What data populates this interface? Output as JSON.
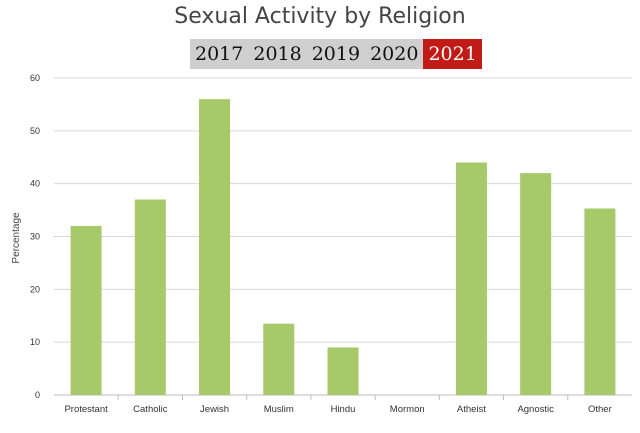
{
  "title": "Sexual Activity by Religion",
  "year_tabs": {
    "years": [
      "2017",
      "2018",
      "2019",
      "2020",
      "2021"
    ],
    "active": "2021"
  },
  "colors": {
    "bar": "#a6c96a",
    "active_tab": "#c11b17",
    "tab_bg": "#cfcfcf",
    "grid": "#d8d8d8"
  },
  "chart_data": {
    "type": "bar",
    "title": "Sexual Activity by Religion",
    "xlabel": "",
    "ylabel": "Percentage",
    "ylim": [
      0,
      60
    ],
    "yticks": [
      0,
      10,
      20,
      30,
      40,
      50,
      60
    ],
    "grid": true,
    "legend": "none",
    "categories": [
      "Protestant",
      "Catholic",
      "Jewish",
      "Muslim",
      "Hindu",
      "Mormon",
      "Atheist",
      "Agnostic",
      "Other"
    ],
    "values": [
      32,
      37,
      56,
      13.5,
      9,
      0,
      44,
      42,
      35.3
    ]
  }
}
